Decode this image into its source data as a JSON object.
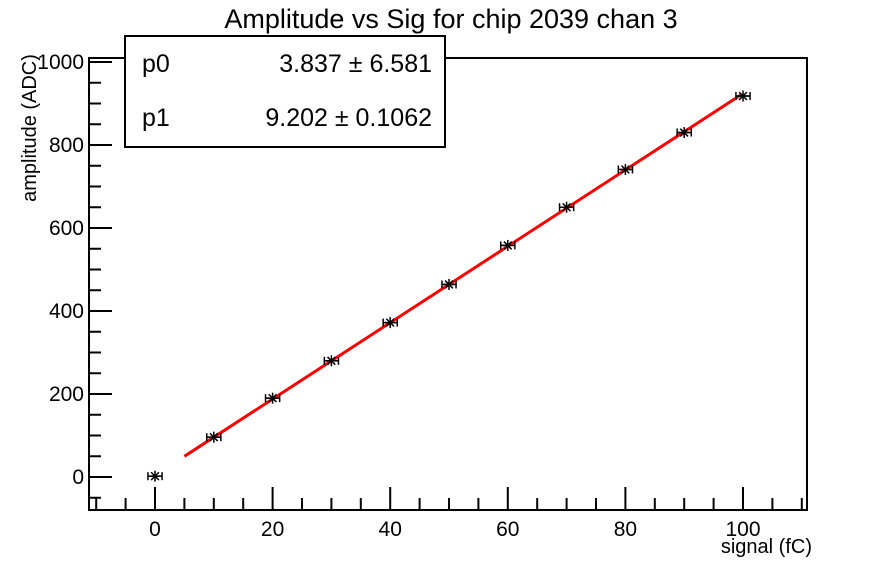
{
  "page": {
    "background": "#ffffff",
    "foreground": "#000000"
  },
  "chart_data": {
    "type": "scatter",
    "title": "Amplitude vs Sig for chip 2039 chan 3",
    "xlabel": "signal (fC)",
    "ylabel": "amplitude (ADC)",
    "x": [
      0,
      10,
      20,
      30,
      40,
      50,
      60,
      70,
      80,
      90,
      100
    ],
    "y": [
      2,
      96,
      190,
      280,
      372,
      464,
      558,
      650,
      741,
      830,
      918
    ],
    "x_err": 1.2,
    "x_ticks": [
      0,
      20,
      40,
      60,
      80,
      100
    ],
    "y_ticks": [
      0,
      200,
      400,
      600,
      800,
      1000
    ],
    "x_minor_step": 5,
    "y_minor_step": 50,
    "xlim": [
      -11.2,
      110.5
    ],
    "ylim": [
      -80,
      1010
    ],
    "grid": false,
    "legend": "none",
    "marker": "asterisk-with-x-error-bars",
    "marker_color": "#000000",
    "fit": {
      "type": "linear",
      "p0": 3.837,
      "p0_err": 6.581,
      "p1": 9.202,
      "p1_err": 0.1062,
      "range": [
        5,
        99.8
      ],
      "color": "#ff0000"
    }
  },
  "stats_box": {
    "rows": [
      {
        "label": "p0",
        "value": "3.837 ± 6.581"
      },
      {
        "label": "p1",
        "value": "9.202 ± 0.1062"
      }
    ]
  }
}
